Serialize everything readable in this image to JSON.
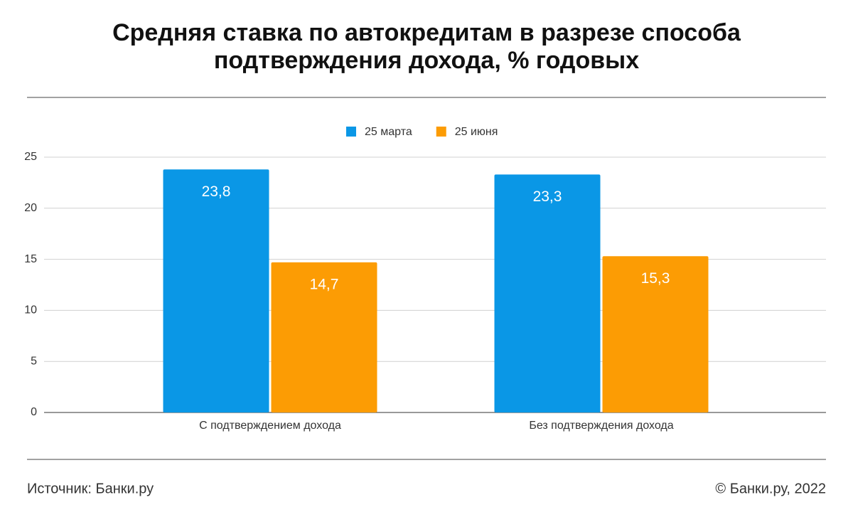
{
  "chart_data": {
    "type": "bar",
    "title": [
      "Средняя ставка по автокредитам в разрезе способа",
      "подтверждения дохода, % годовых"
    ],
    "categories": [
      "С подтверждением дохода",
      "Без подтверждения дохода"
    ],
    "series": [
      {
        "name": "25 марта",
        "color": "#0a97e6",
        "values": [
          23.8,
          23.3
        ],
        "value_labels": [
          "23,8",
          "23,3"
        ]
      },
      {
        "name": "25 июня",
        "color": "#fc9c04",
        "values": [
          14.7,
          15.3
        ],
        "value_labels": [
          "14,7",
          "15,3"
        ]
      }
    ],
    "ylim": [
      0,
      25
    ],
    "yticks": [
      0,
      5,
      10,
      15,
      20,
      25
    ],
    "grid": true,
    "legend": "top",
    "source": "Источник: Банки.ру",
    "copyright": "© Банки.ру, 2022"
  }
}
